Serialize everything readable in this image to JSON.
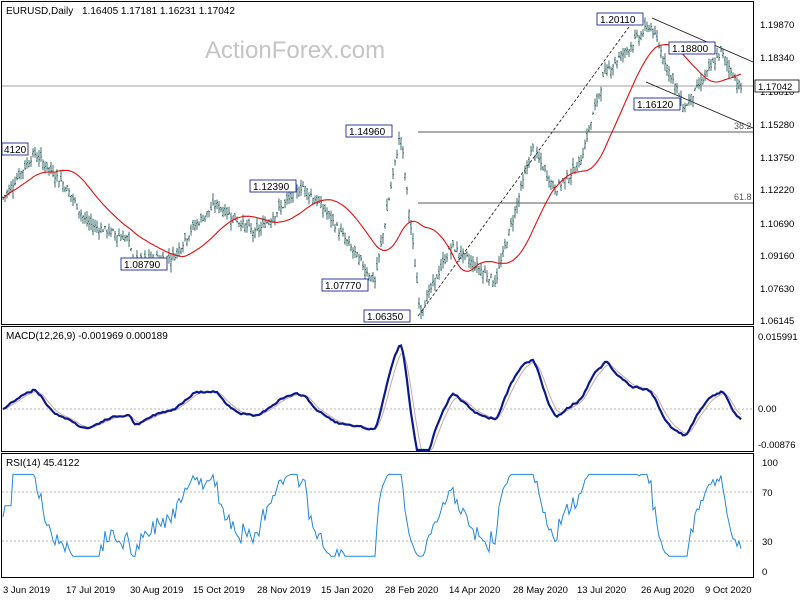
{
  "header": {
    "symbol": "EURUSD,Daily",
    "ohlc": "1.16405 1.17181 1.16231 1.17042"
  },
  "watermark": "ActionForex.com",
  "price_axis": {
    "ticks": [
      "1.19870",
      "1.18340",
      "1.16810",
      "1.15280",
      "1.13750",
      "1.12220",
      "1.10690",
      "1.09160",
      "1.07630",
      "1.06145"
    ],
    "current_price": "1.17042"
  },
  "levels": [
    {
      "label": "38.2",
      "price": 1.1496
    },
    {
      "label": "61.8",
      "price": 1.1175
    }
  ],
  "annotations": [
    {
      "label": "4120"
    },
    {
      "label": "1.08790"
    },
    {
      "label": "1.12390"
    },
    {
      "label": "1.07770"
    },
    {
      "label": "1.14960"
    },
    {
      "label": "1.06350"
    },
    {
      "label": "1.20110"
    },
    {
      "label": "1.18800"
    },
    {
      "label": "1.16120"
    }
  ],
  "macd": {
    "title": "MACD(12,26,9) -0.001969 0.000189",
    "ticks": [
      "0.015991",
      "0.00",
      "-0.00876"
    ]
  },
  "rsi": {
    "title": "RSI(14) 45.4122",
    "ticks": [
      "100",
      "70",
      "30",
      "0"
    ]
  },
  "date_axis": {
    "labels": [
      "3 Jun 2019",
      "17 Jul 2019",
      "30 Aug 2019",
      "15 Oct 2019",
      "28 Nov 2019",
      "15 Jan 2020",
      "28 Feb 2020",
      "14 Apr 2020",
      "28 May 2020",
      "13 Jul 2020",
      "26 Aug 2020",
      "9 Oct 2020"
    ]
  },
  "colors": {
    "price_bars": "#3f6d6d",
    "moving_average": "#e01010",
    "macd_line": "#0a1a8c",
    "signal_line": "#c8a8a8",
    "rsi_line": "#2288dd",
    "label_box_border": "#1a2a99"
  },
  "chart_data": {
    "type": "ohlc",
    "description_fields": "price panel with 55-day moving average, MACD and RSI sub-panels",
    "ylim": [
      1.06145,
      1.2062
    ],
    "price_path": [
      {
        "date": "2019-06-03",
        "close": 1.118
      },
      {
        "date": "2019-06-25",
        "close": 1.1395
      },
      {
        "date": "2019-07-17",
        "close": 1.124
      },
      {
        "date": "2019-08-01",
        "close": 1.106
      },
      {
        "date": "2019-08-30",
        "close": 1.0985
      },
      {
        "date": "2019-09-03",
        "close": 1.0879
      },
      {
        "date": "2019-10-01",
        "close": 1.09
      },
      {
        "date": "2019-10-15",
        "close": 1.104
      },
      {
        "date": "2019-10-31",
        "close": 1.115
      },
      {
        "date": "2019-11-28",
        "close": 1.101
      },
      {
        "date": "2019-12-31",
        "close": 1.1239
      },
      {
        "date": "2020-01-15",
        "close": 1.113
      },
      {
        "date": "2020-02-20",
        "close": 1.0777
      },
      {
        "date": "2020-03-09",
        "close": 1.1496
      },
      {
        "date": "2020-03-23",
        "close": 1.0635
      },
      {
        "date": "2020-04-14",
        "close": 1.095
      },
      {
        "date": "2020-05-15",
        "close": 1.078
      },
      {
        "date": "2020-05-28",
        "close": 1.11
      },
      {
        "date": "2020-06-10",
        "close": 1.142
      },
      {
        "date": "2020-06-26",
        "close": 1.122
      },
      {
        "date": "2020-07-13",
        "close": 1.134
      },
      {
        "date": "2020-07-31",
        "close": 1.178
      },
      {
        "date": "2020-09-01",
        "close": 1.2011
      },
      {
        "date": "2020-09-25",
        "close": 1.1612
      },
      {
        "date": "2020-10-21",
        "close": 1.188
      },
      {
        "date": "2020-11-04",
        "close": 1.1704
      }
    ],
    "macd_ylim": [
      -0.00876,
      0.015991
    ],
    "rsi_ylim": [
      0,
      100
    ]
  }
}
